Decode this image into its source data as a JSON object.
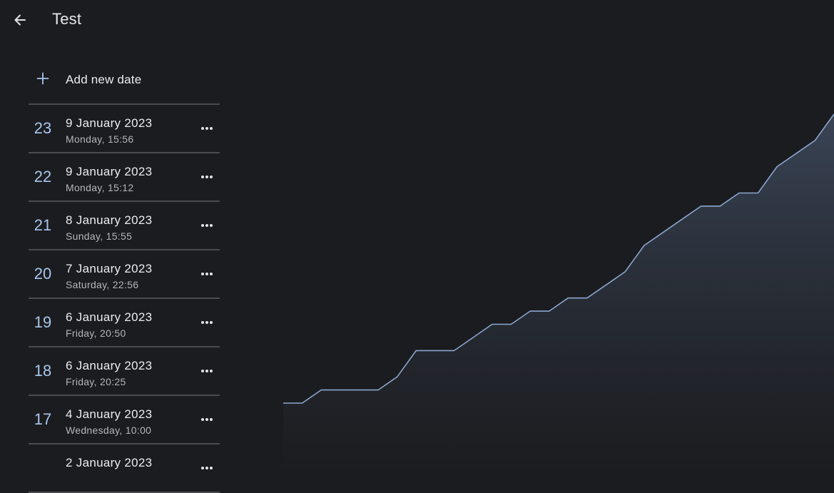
{
  "header": {
    "title": "Test",
    "back_icon": "arrow-left-icon"
  },
  "sidebar": {
    "add_label": "Add new date",
    "add_icon": "plus-icon",
    "entries": [
      {
        "number": "23",
        "date": "9 January 2023",
        "detail": "Monday, 15:56"
      },
      {
        "number": "22",
        "date": "9 January 2023",
        "detail": "Monday, 15:12"
      },
      {
        "number": "21",
        "date": "8 January 2023",
        "detail": "Sunday, 15:55"
      },
      {
        "number": "20",
        "date": "7 January 2023",
        "detail": "Saturday, 22:56"
      },
      {
        "number": "19",
        "date": "6 January 2023",
        "detail": "Friday, 20:50"
      },
      {
        "number": "18",
        "date": "6 January 2023",
        "detail": "Friday, 20:25"
      },
      {
        "number": "17",
        "date": "4 January 2023",
        "detail": "Wednesday, 10:00"
      },
      {
        "number": "",
        "date": "2 January 2023",
        "detail": ""
      }
    ]
  },
  "colors": {
    "background": "#1b1c1f",
    "accent": "#a9c6ee",
    "line": "#8aa6cf",
    "divider": "#4a4b4f"
  },
  "chart_data": {
    "type": "area",
    "x": [
      0,
      1,
      2,
      3,
      4,
      5,
      6,
      7,
      8,
      9,
      10,
      11,
      12,
      13,
      14,
      15,
      16,
      17,
      18,
      19,
      20,
      21,
      22,
      23,
      24,
      25,
      26,
      27,
      28,
      29
    ],
    "y": [
      0,
      0,
      1,
      1,
      1,
      1,
      2,
      4,
      4,
      4,
      5,
      6,
      6,
      7,
      7,
      8,
      8,
      9,
      10,
      12,
      13,
      14,
      15,
      15,
      16,
      16,
      18,
      19,
      20,
      22
    ]
  }
}
